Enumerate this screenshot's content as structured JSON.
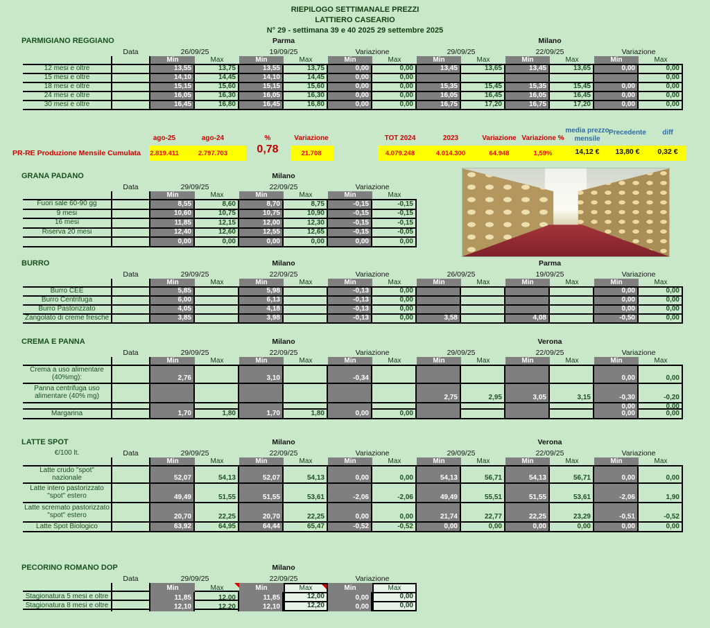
{
  "page_header": {
    "line1": "RIEPILOGO SETTIMANALE PREZZI",
    "line2": "LATTIERO CASEARIO",
    "line3": "N° 29 - settimana 39 e 40 2025  29 settembre  2025"
  },
  "labels": {
    "data": "Data",
    "min": "Min",
    "max": "Max",
    "variazione": "Variazione"
  },
  "colors": {
    "background": "#c9e7c9",
    "cell_gray": "#7f7f7f",
    "highlight_yellow": "#ffff00",
    "accent_red": "#d40000",
    "accent_blue": "#2e6da4",
    "text_green": "#1b4f24"
  },
  "prre": {
    "label": "PR-RE Produzione Mensile  Cumulata",
    "columns": [
      {
        "header": "ago-25",
        "value": "2.819.411",
        "style": "red"
      },
      {
        "header": "ago-24",
        "value": "2.797.703",
        "style": "red"
      },
      {
        "header": "%",
        "value": "0,78",
        "style": "big"
      },
      {
        "header": "Variazione",
        "value": "21.708",
        "style": "red"
      },
      {
        "header": "TOT 2024",
        "value": "4.079.248",
        "style": "red"
      },
      {
        "header": "2023",
        "value": "4.014.300",
        "style": "red"
      },
      {
        "header": "Variazione",
        "value": "64.948",
        "style": "red"
      },
      {
        "header": "Variazione %",
        "value": "1,59%",
        "style": "red"
      },
      {
        "header": "media prezzo mensile",
        "value": "14,12 €",
        "style": "black"
      },
      {
        "header": "Precedente",
        "value": "13,80 €",
        "style": "black"
      },
      {
        "header": "diff",
        "value": "0,32 €",
        "style": "black"
      }
    ]
  },
  "sections": [
    {
      "id": "parmigiano",
      "title": "PARMIGIANO REGGIANO",
      "groups": [
        {
          "city": "Parma",
          "date1": "26/09/25",
          "date2": "19/09/25"
        },
        {
          "city": "Milano",
          "date1": "29/09/25",
          "date2": "22/09/25"
        }
      ],
      "rows": [
        {
          "label": "12 mesi e oltre",
          "values": [
            "13,55",
            "13,75",
            "13,55",
            "13,75",
            "0,00",
            "0,00",
            "13,45",
            "13,65",
            "13,45",
            "13,65",
            "0,00",
            "0,00"
          ]
        },
        {
          "label": "15 mesi e oltre",
          "values": [
            "14,10",
            "14,45",
            "14,10",
            "14,45",
            "0,00",
            "0,00",
            "",
            "",
            "",
            "",
            "",
            "0,00"
          ]
        },
        {
          "label": "18 mesi e oltre",
          "values": [
            "15,15",
            "15,60",
            "15,15",
            "15,60",
            "0,00",
            "0,00",
            "15,35",
            "15,45",
            "15,35",
            "15,45",
            "0,00",
            "0,00"
          ]
        },
        {
          "label": "24 mesi e oltre",
          "values": [
            "16,05",
            "16,30",
            "16,05",
            "16,30",
            "0,00",
            "0,00",
            "16,05",
            "16,45",
            "16,05",
            "16,45",
            "0,00",
            "0,00"
          ]
        },
        {
          "label": "30 mesi e oltre",
          "values": [
            "16,45",
            "16,80",
            "16,45",
            "16,80",
            "0,00",
            "0,00",
            "16,75",
            "17,20",
            "16,75",
            "17,20",
            "0,00",
            "0,00"
          ]
        }
      ]
    },
    {
      "id": "grana",
      "title": "GRANA PADANO",
      "groups": [
        {
          "city": "Milano",
          "date1": "29/09/25",
          "date2": "22/09/25"
        }
      ],
      "rows": [
        {
          "label": "Fuori sale 60-90 gg",
          "values": [
            "8,55",
            "8,60",
            "8,70",
            "8,75",
            "-0,15",
            "-0,15"
          ]
        },
        {
          "label": "9 mesi",
          "values": [
            "10,60",
            "10,75",
            "10,75",
            "10,90",
            "-0,15",
            "-0,15"
          ]
        },
        {
          "label": "16 mesi",
          "values": [
            "11,85",
            "12,15",
            "12,00",
            "12,30",
            "-0,15",
            "-0,15"
          ]
        },
        {
          "label": "Riserva 20 mesi",
          "values": [
            "12,40",
            "12,60",
            "12,55",
            "12,65",
            "-0,15",
            "-0,05"
          ]
        },
        {
          "label": "",
          "values": [
            "0,00",
            "0,00",
            "0,00",
            "0,00",
            "0,00",
            "0,00"
          ]
        }
      ]
    },
    {
      "id": "burro",
      "title": "BURRO",
      "groups": [
        {
          "city": "Milano",
          "date1": "29/09/25",
          "date2": "22/09/25"
        },
        {
          "city": "Parma",
          "date1": "26/09/25",
          "date2": "19/09/25"
        }
      ],
      "rows": [
        {
          "label": "Burro CEE",
          "values": [
            "5,85",
            "",
            "5,98",
            "",
            "-0,13",
            "0,00",
            "",
            "",
            "",
            "",
            "0,00",
            "0,00"
          ]
        },
        {
          "label": "Burro Centrifuga",
          "values": [
            "6,00",
            "",
            "6,13",
            "",
            "-0,13",
            "0,00",
            "",
            "",
            "",
            "",
            "0,00",
            "0,00"
          ]
        },
        {
          "label": "Burro Pastorizzato",
          "values": [
            "4,05",
            "",
            "4,18",
            "",
            "-0,13",
            "0,00",
            "",
            "",
            "",
            "",
            "0,00",
            "0,00"
          ]
        },
        {
          "label": "Zangolato di creme fresche",
          "values": [
            "3,85",
            "",
            "3,98",
            "",
            "-0,13",
            "0,00",
            "3,58",
            "",
            "4,08",
            "",
            "-0,50",
            "0,00"
          ]
        }
      ]
    },
    {
      "id": "crema",
      "title": "CREMA E PANNA",
      "groups": [
        {
          "city": "Milano",
          "date1": "29/09/25",
          "date2": "22/09/25"
        },
        {
          "city": "Verona",
          "date1": "29/09/25",
          "date2": "22/09/25"
        }
      ],
      "rows": [
        {
          "label": "Crema a uso alimentare (40%mg):",
          "values": [
            "2,76",
            "",
            "3,10",
            "",
            "-0,34",
            "",
            "",
            "",
            "",
            "",
            "0,00",
            "0,00"
          ]
        },
        {
          "label": "Panna centrifuga uso alimentare (40% mg)",
          "values": [
            "",
            "",
            "",
            "",
            "",
            "",
            "2,75",
            "2,95",
            "3,05",
            "3,15",
            "-0,30",
            "-0,20"
          ]
        },
        {
          "label": "",
          "values": [
            "",
            "",
            "",
            "",
            "",
            "",
            "",
            "",
            "",
            "",
            "0,00",
            "0,00"
          ]
        },
        {
          "label": "Margarina",
          "values": [
            "1,70",
            "1,80",
            "1,70",
            "1,80",
            "0,00",
            "0,00",
            "",
            "",
            "",
            "",
            "0,00",
            "0,00"
          ]
        }
      ]
    },
    {
      "id": "latte",
      "title": "LATTE SPOT",
      "sub": "€/100 lt.",
      "groups": [
        {
          "city": "Milano",
          "date1": "29/09/25",
          "date2": "22/09/25"
        },
        {
          "city": "Verona",
          "date1": "29/09/25",
          "date2": "22/09/25"
        }
      ],
      "rows": [
        {
          "label": "Latte crudo \"spot\" nazionale",
          "values": [
            "52,07",
            "54,13",
            "52,07",
            "54,13",
            "0,00",
            "0,00",
            "54,13",
            "56,71",
            "54,13",
            "56,71",
            "0,00",
            "0,00"
          ]
        },
        {
          "label": "Latte intero pastorizzato \"spot\" estero",
          "values": [
            "49,49",
            "51,55",
            "51,55",
            "53,61",
            "-2,06",
            "-2,06",
            "49,49",
            "55,51",
            "51,55",
            "53,61",
            "-2,06",
            "1,90"
          ]
        },
        {
          "label": "Latte scremato pastorizzato \"spot\" estero",
          "values": [
            "20,70",
            "22,25",
            "20,70",
            "22,25",
            "0,00",
            "0,00",
            "21,74",
            "22,77",
            "22,25",
            "23,29",
            "-0,51",
            "-0,52"
          ]
        },
        {
          "label": "Latte Spot Biologico",
          "values": [
            "63,92",
            "64,95",
            "64,44",
            "65,47",
            "-0,52",
            "-0,52",
            "0,00",
            "0,00",
            "0,00",
            "0,00",
            "0,00",
            "0,00"
          ]
        }
      ]
    },
    {
      "id": "pecorino",
      "title": "PECORINO ROMANO DOP",
      "groups": [
        {
          "city": "Milano",
          "date1": "29/09/25",
          "date2": "22/09/25"
        }
      ],
      "rows": [
        {
          "label": "Stagionatura 5 mesi e oltre",
          "values": [
            "11,85",
            "12,00",
            "11,85",
            "12,00",
            "0,00",
            "0,00"
          ]
        },
        {
          "label": "Stagionatura 8 mesi e oltre",
          "values": [
            "12,10",
            "12,20",
            "12,10",
            "12,20",
            "0,00",
            "0,00"
          ]
        }
      ]
    }
  ]
}
